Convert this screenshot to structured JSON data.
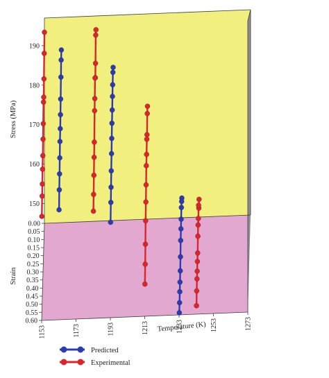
{
  "chart_data": {
    "type": "line",
    "projection": "3d",
    "x_axis": {
      "label": "Temperature (K)",
      "range": [
        1153,
        1273
      ],
      "ticks": [
        "1153",
        "1173",
        "1193",
        "1213",
        "1233",
        "1253",
        "1273"
      ]
    },
    "y_axis": {
      "label": "Strain",
      "range": [
        0.0,
        0.6
      ],
      "ticks": [
        "0.00",
        "0.05",
        "0.10",
        "0.15",
        "0.20",
        "0.25",
        "0.30",
        "0.35",
        "0.40",
        "0.45",
        "0.50",
        "0.55",
        "0.60"
      ]
    },
    "z_axis": {
      "label": "Stress (MPa)",
      "range": [
        145,
        197
      ],
      "ticks": [
        "150",
        "160",
        "170",
        "180",
        "190"
      ]
    },
    "colors": {
      "back_wall": "#f1ef7e",
      "floor": "#e3a8cf",
      "side_wall": "#8e8e93",
      "predicted": "#2d3bb0",
      "experimental": "#d9262a",
      "frame": "#3a3a3a"
    },
    "legend": {
      "placement": "bottom-left",
      "entries": [
        "Predicted",
        "Experimental"
      ]
    },
    "series": [
      {
        "name": "Experimental",
        "groups": [
          {
            "temperature": 1153,
            "strain": [
              0.0,
              0.05,
              0.1,
              0.15,
              0.2,
              0.25,
              0.3,
              0.35,
              0.4,
              0.45,
              0.5,
              0.55
            ],
            "stress": [
              193.4,
              190.1,
              185.7,
              183.1,
              183.9,
              180.5,
              178.6,
              176.5,
              175.1,
              173.4,
              172.4,
              169.3
            ]
          },
          {
            "temperature": 1183,
            "strain": [
              0.0,
              0.05,
              0.1,
              0.15,
              0.2,
              0.25,
              0.3,
              0.35,
              0.4,
              0.45,
              0.5,
              0.55
            ],
            "stress": [
              193.5,
              194.2,
              189.1,
              187.5,
              189.5,
              186.3,
              185.3,
              179.4,
              177.6,
              175.1,
              172.3,
              170.1
            ]
          },
          {
            "temperature": 1213,
            "strain": [
              0.0,
              0.05,
              0.1,
              0.15,
              0.2,
              0.25,
              0.3,
              0.35,
              0.4,
              0.45,
              0.5,
              0.55
            ],
            "stress": [
              173.6,
              173.8,
              170.5,
              171.4,
              169.6,
              168.8,
              166.0,
              163.7,
              161.0,
              157.1,
              154.1,
              151.1
            ]
          },
          {
            "temperature": 1243,
            "strain": [
              0.0,
              0.05,
              0.1,
              0.15,
              0.2,
              0.25,
              0.3,
              0.35,
              0.4,
              0.45,
              0.5,
              0.55
            ],
            "stress": [
              149.5,
              149.3,
              152.1,
              150.8,
              151.2,
              150.4,
              148.2,
              148.1,
              147.7,
              147.8,
              146.8,
              145.1
            ]
          }
        ]
      },
      {
        "name": "Predicted",
        "groups": [
          {
            "temperature": 1163,
            "strain": [
              0.05,
              0.1,
              0.15,
              0.2,
              0.25,
              0.3,
              0.35,
              0.4,
              0.45,
              0.5,
              0.55
            ],
            "stress": [
              190.8,
              190.3,
              188.0,
              184.5,
              182.6,
              181.1,
              179.9,
              177.8,
              175.8,
              173.8,
              170.8
            ]
          },
          {
            "temperature": 1193,
            "strain": [
              0.0,
              0.05,
              0.1,
              0.15,
              0.2,
              0.25,
              0.3,
              0.35,
              0.4,
              0.45,
              0.5,
              0.55
            ],
            "stress": [
              183.8,
              184.6,
              183.5,
              182.6,
              181.2,
              179.9,
              178.1,
              176.3,
              174.0,
              171.9,
              170.1,
              167.1
            ]
          },
          {
            "temperature": 1233,
            "strain": [
              0.0,
              0.05,
              0.1,
              0.15,
              0.2,
              0.25,
              0.3,
              0.35,
              0.4,
              0.45,
              0.5,
              0.55
            ],
            "stress": [
              150.0,
              151.2,
              151.7,
              150.8,
              150.4,
              149.5,
              147.4,
              145.9,
              145.1,
              144.7,
              144.0,
              143.5
            ]
          }
        ]
      }
    ]
  }
}
